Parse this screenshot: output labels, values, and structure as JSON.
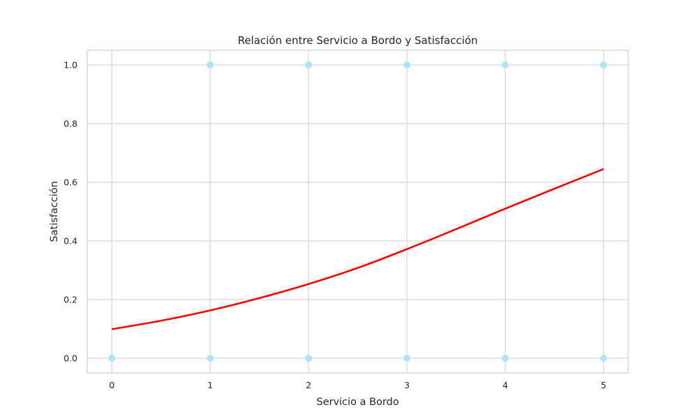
{
  "chart_data": {
    "type": "scatter",
    "title": "Relación entre Servicio a Bordo y Satisfacción",
    "xlabel": "Servicio a Bordo",
    "ylabel": "Satisfacción",
    "xlim": [
      -0.25,
      5.25
    ],
    "ylim": [
      -0.05,
      1.05
    ],
    "xticks": [
      0,
      1,
      2,
      3,
      4,
      5
    ],
    "xtick_labels": [
      "0",
      "1",
      "2",
      "3",
      "4",
      "5"
    ],
    "yticks": [
      0.0,
      0.2,
      0.4,
      0.6,
      0.8,
      1.0
    ],
    "ytick_labels": [
      "0.0",
      "0.2",
      "0.4",
      "0.6",
      "0.8",
      "1.0"
    ],
    "grid": true,
    "series": [
      {
        "kind": "scatter",
        "color": "#aee4f8",
        "points": [
          {
            "x": 0,
            "y": 0
          },
          {
            "x": 1,
            "y": 0
          },
          {
            "x": 2,
            "y": 0
          },
          {
            "x": 3,
            "y": 0
          },
          {
            "x": 4,
            "y": 0
          },
          {
            "x": 5,
            "y": 0
          },
          {
            "x": 1,
            "y": 1
          },
          {
            "x": 2,
            "y": 1
          },
          {
            "x": 3,
            "y": 1
          },
          {
            "x": 4,
            "y": 1
          },
          {
            "x": 5,
            "y": 1
          }
        ]
      },
      {
        "kind": "line",
        "color": "#ff0000",
        "x": [
          0,
          0.5,
          1,
          1.5,
          2,
          2.5,
          3,
          3.5,
          4,
          4.5,
          5
        ],
        "y": [
          0.099,
          0.128,
          0.163,
          0.205,
          0.253,
          0.308,
          0.372,
          0.44,
          0.51,
          0.578,
          0.645
        ]
      }
    ]
  }
}
